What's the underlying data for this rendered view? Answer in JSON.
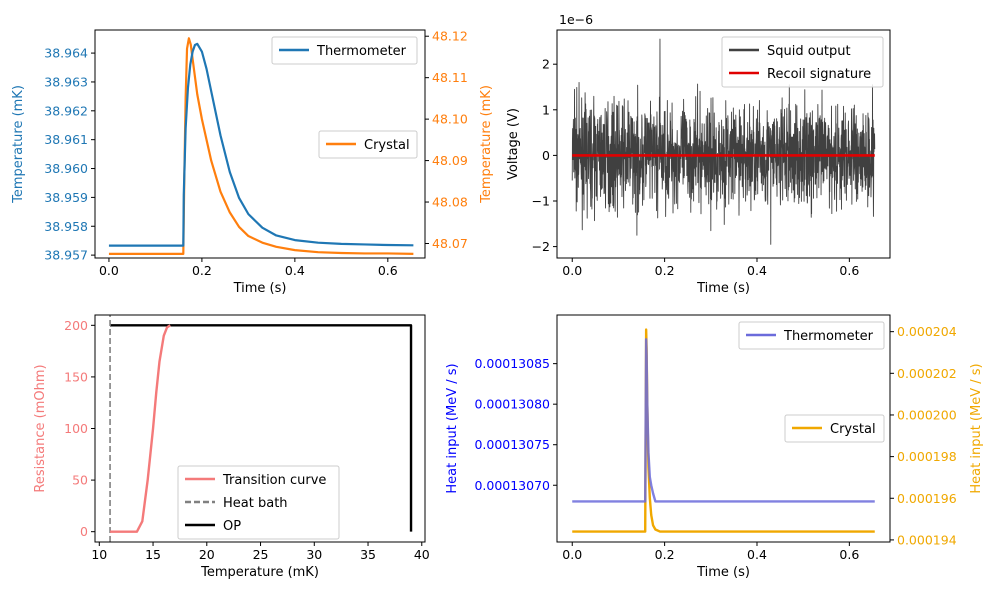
{
  "colors": {
    "blue": "#1f77b4",
    "orange": "#ff7f0e",
    "dark_gray": "#404040",
    "red": "#e00000",
    "salmon": "#f47a7a",
    "gray_dash": "#808080",
    "black": "#000000",
    "purple_blue": "#6b6bdb",
    "gold": "#f0a800",
    "overlap": "#7a4aa0",
    "pure_blue": "#0000ff"
  },
  "chart_data": [
    {
      "id": "top-left",
      "type": "line",
      "xlabel": "Time (s)",
      "ylabel_left": "Temperature (mK)",
      "ylabel_right": "Temperature (mK)",
      "xlim": [
        -0.03,
        0.68
      ],
      "xticks": [
        0.0,
        0.2,
        0.4,
        0.6
      ],
      "xtick_labels": [
        "0.0",
        "0.2",
        "0.4",
        "0.6"
      ],
      "ylim_left": [
        38.9569,
        38.9648
      ],
      "yticks_left": [
        38.957,
        38.958,
        38.959,
        38.96,
        38.961,
        38.962,
        38.963,
        38.964
      ],
      "ytick_labels_left": [
        "38.957",
        "38.958",
        "38.959",
        "38.960",
        "38.961",
        "38.962",
        "38.963",
        "38.964"
      ],
      "ylim_right": [
        48.0665,
        48.1215
      ],
      "yticks_right": [
        48.07,
        48.08,
        48.09,
        48.1,
        48.11,
        48.12
      ],
      "ytick_labels_right": [
        "48.07",
        "48.08",
        "48.09",
        "48.10",
        "48.11",
        "48.12"
      ],
      "series": [
        {
          "name": "Thermometer",
          "axis": "left",
          "color": "blue",
          "x": [
            0.0,
            0.16,
            0.161,
            0.165,
            0.17,
            0.175,
            0.18,
            0.185,
            0.19,
            0.2,
            0.21,
            0.22,
            0.24,
            0.26,
            0.28,
            0.3,
            0.33,
            0.36,
            0.4,
            0.45,
            0.5,
            0.55,
            0.6,
            0.655
          ],
          "y": [
            38.95733,
            38.95733,
            38.9591,
            38.9614,
            38.9628,
            38.9636,
            38.96405,
            38.96428,
            38.96432,
            38.96405,
            38.96345,
            38.96268,
            38.96115,
            38.95988,
            38.95898,
            38.95842,
            38.95795,
            38.95768,
            38.95752,
            38.95743,
            38.95739,
            38.95737,
            38.95735,
            38.95734
          ]
        },
        {
          "name": "Crystal",
          "axis": "right",
          "color": "orange",
          "x": [
            0.0,
            0.16,
            0.162,
            0.165,
            0.168,
            0.172,
            0.176,
            0.18,
            0.19,
            0.2,
            0.22,
            0.24,
            0.26,
            0.28,
            0.3,
            0.33,
            0.36,
            0.4,
            0.45,
            0.5,
            0.55,
            0.6,
            0.655
          ],
          "y": [
            48.0675,
            48.0675,
            48.085,
            48.105,
            48.117,
            48.1195,
            48.118,
            48.1145,
            48.106,
            48.1,
            48.09,
            48.0825,
            48.0775,
            48.074,
            48.0718,
            48.0702,
            48.0692,
            48.0684,
            48.0679,
            48.0677,
            48.0676,
            48.0676,
            48.0675
          ]
        }
      ]
    },
    {
      "id": "top-right",
      "type": "line",
      "xlabel": "Time (s)",
      "ylabel": "Voltage (V)",
      "offset_label": "1e−6",
      "xlim": [
        -0.033,
        0.688
      ],
      "xticks": [
        0.0,
        0.2,
        0.4,
        0.6
      ],
      "xtick_labels": [
        "0.0",
        "0.2",
        "0.4",
        "0.6"
      ],
      "ylim": [
        -2.25,
        2.75
      ],
      "yticks": [
        -2,
        -1,
        0,
        1,
        2
      ],
      "ytick_labels": [
        "−2",
        "−1",
        "0",
        "1",
        "2"
      ],
      "noise": {
        "name": "Squid output",
        "color": "dark_gray",
        "x_start": 0.0,
        "x_end": 0.655,
        "approx_range": [
          -1.95,
          2.55
        ],
        "peak_x": 0.19,
        "peak_y": 2.55
      },
      "series": [
        {
          "name": "Recoil signature",
          "color": "red",
          "x": [
            0.0,
            0.655
          ],
          "y": [
            0.0,
            0.0
          ]
        }
      ]
    },
    {
      "id": "bottom-left",
      "type": "line",
      "xlabel": "Temperature (mK)",
      "ylabel": "Resistance (mOhm)",
      "xlim": [
        9.6,
        40.3
      ],
      "xticks": [
        10,
        15,
        20,
        25,
        30,
        35,
        40
      ],
      "xtick_labels": [
        "10",
        "15",
        "20",
        "25",
        "30",
        "35",
        "40"
      ],
      "ylim": [
        -10,
        210
      ],
      "yticks": [
        0,
        50,
        100,
        150,
        200
      ],
      "ytick_labels": [
        "0",
        "50",
        "100",
        "150",
        "200"
      ],
      "series": [
        {
          "name": "Transition curve",
          "color": "salmon",
          "x": [
            11.0,
            13.5,
            14.0,
            14.5,
            15.0,
            15.3,
            15.6,
            16.0,
            16.3,
            16.6
          ],
          "y": [
            0,
            0,
            10,
            50,
            100,
            135,
            165,
            190,
            198,
            200
          ]
        },
        {
          "name": "Heat bath",
          "color": "gray_dash",
          "x": [
            11.0,
            11.0
          ],
          "y": [
            -10,
            210
          ]
        },
        {
          "name": "OP",
          "color": "black",
          "x": [
            11.0,
            39.0,
            39.0
          ],
          "y": [
            200,
            200,
            0
          ]
        }
      ]
    },
    {
      "id": "bottom-right",
      "type": "line",
      "xlabel": "Time (s)",
      "ylabel_left": "Heat input (MeV / s)",
      "ylabel_right": "Heat input (MeV / s)",
      "xlim": [
        -0.033,
        0.688
      ],
      "xticks": [
        0.0,
        0.2,
        0.4,
        0.6
      ],
      "xtick_labels": [
        "0.0",
        "0.2",
        "0.4",
        "0.6"
      ],
      "ylim_left": [
        0.00013063,
        0.00013091
      ],
      "yticks_left": [
        0.0001307,
        0.00013075,
        0.0001308,
        0.00013085
      ],
      "ytick_labels_left": [
        "0.00013070",
        "0.00013075",
        "0.00013080",
        "0.00013085"
      ],
      "ylim_right": [
        0.0001939,
        0.0002048
      ],
      "yticks_right": [
        0.000194,
        0.000196,
        0.000198,
        0.0002,
        0.000202,
        0.000204
      ],
      "ytick_labels_right": [
        "0.000194",
        "0.000196",
        "0.000198",
        "0.000200",
        "0.000202",
        "0.000204"
      ],
      "series": [
        {
          "name": "Thermometer",
          "axis": "left",
          "color": "purple_blue",
          "x": [
            0.0,
            0.158,
            0.16,
            0.161,
            0.1625,
            0.165,
            0.168,
            0.171,
            0.175,
            0.18,
            0.19,
            0.655
          ],
          "y": [
            0.00013068,
            0.00013068,
            0.00013088,
            0.00013086,
            0.0001308,
            0.00013074,
            0.00013071,
            0.0001307,
            0.00013069,
            0.00013068,
            0.00013068,
            0.00013068
          ]
        },
        {
          "name": "Crystal",
          "axis": "right",
          "color": "gold",
          "x": [
            0.0,
            0.158,
            0.16,
            0.161,
            0.1625,
            0.165,
            0.168,
            0.171,
            0.175,
            0.18,
            0.19,
            0.655
          ],
          "y": [
            0.0001944,
            0.0001944,
            0.0002041,
            0.0002032,
            0.0002005,
            0.0001975,
            0.000196,
            0.0001952,
            0.0001947,
            0.0001945,
            0.0001944,
            0.0001944
          ]
        }
      ]
    }
  ]
}
